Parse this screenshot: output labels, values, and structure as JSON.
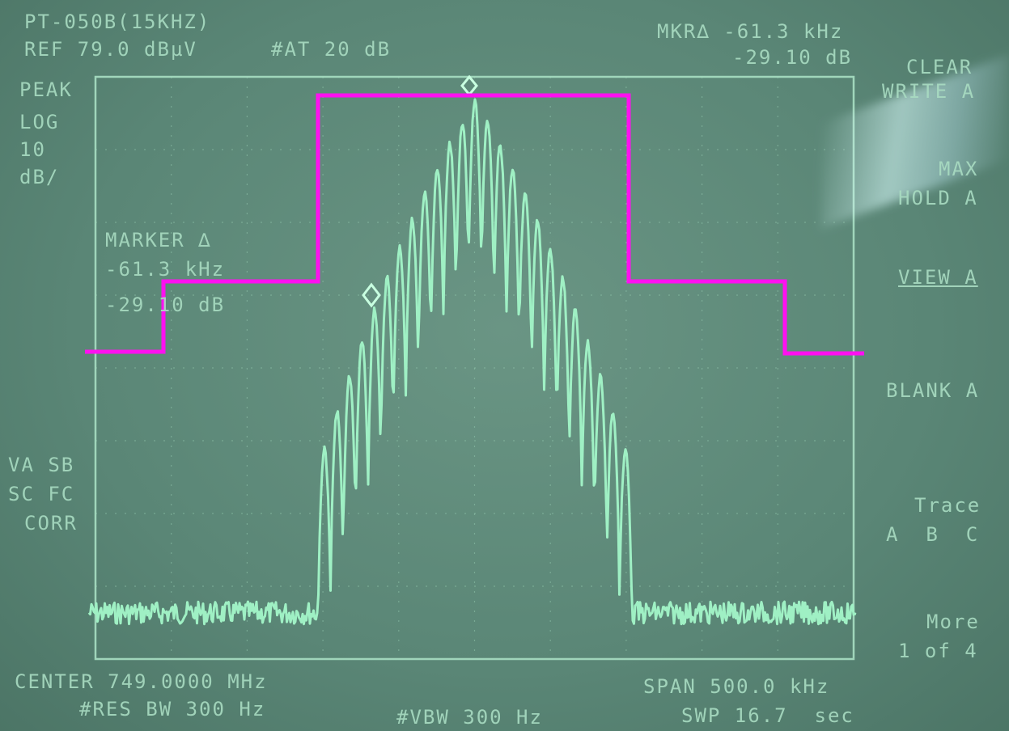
{
  "header": {
    "model": "PT-050B(15KHZ)",
    "ref_level": "REF 79.0 dBµV",
    "attenuation": "#AT 20 dB",
    "marker_freq": "MKR∆ -61.3 kHz",
    "marker_level": "-29.10 dB"
  },
  "left_panel": [
    "PEAK",
    "LOG",
    "10",
    "dB/"
  ],
  "marker_box": {
    "label": "MARKER ∆",
    "freq": "-61.3 kHz",
    "level": "-29.10 dB"
  },
  "flags": [
    "VA SB",
    "SC FC",
    "CORR"
  ],
  "softkeys": [
    "CLEAR",
    "WRITE A",
    "MAX",
    "HOLD A",
    "VIEW A",
    "BLANK A",
    "Trace",
    "A  B  C",
    "More",
    "1 of 4"
  ],
  "footer": {
    "center": "CENTER 749.0000 MHz",
    "res_bw": "#RES BW 300 Hz",
    "vbw": "#VBW 300 Hz",
    "span": "SPAN 500.0 kHz",
    "sweep": "SWP 16.7  sec"
  }
}
